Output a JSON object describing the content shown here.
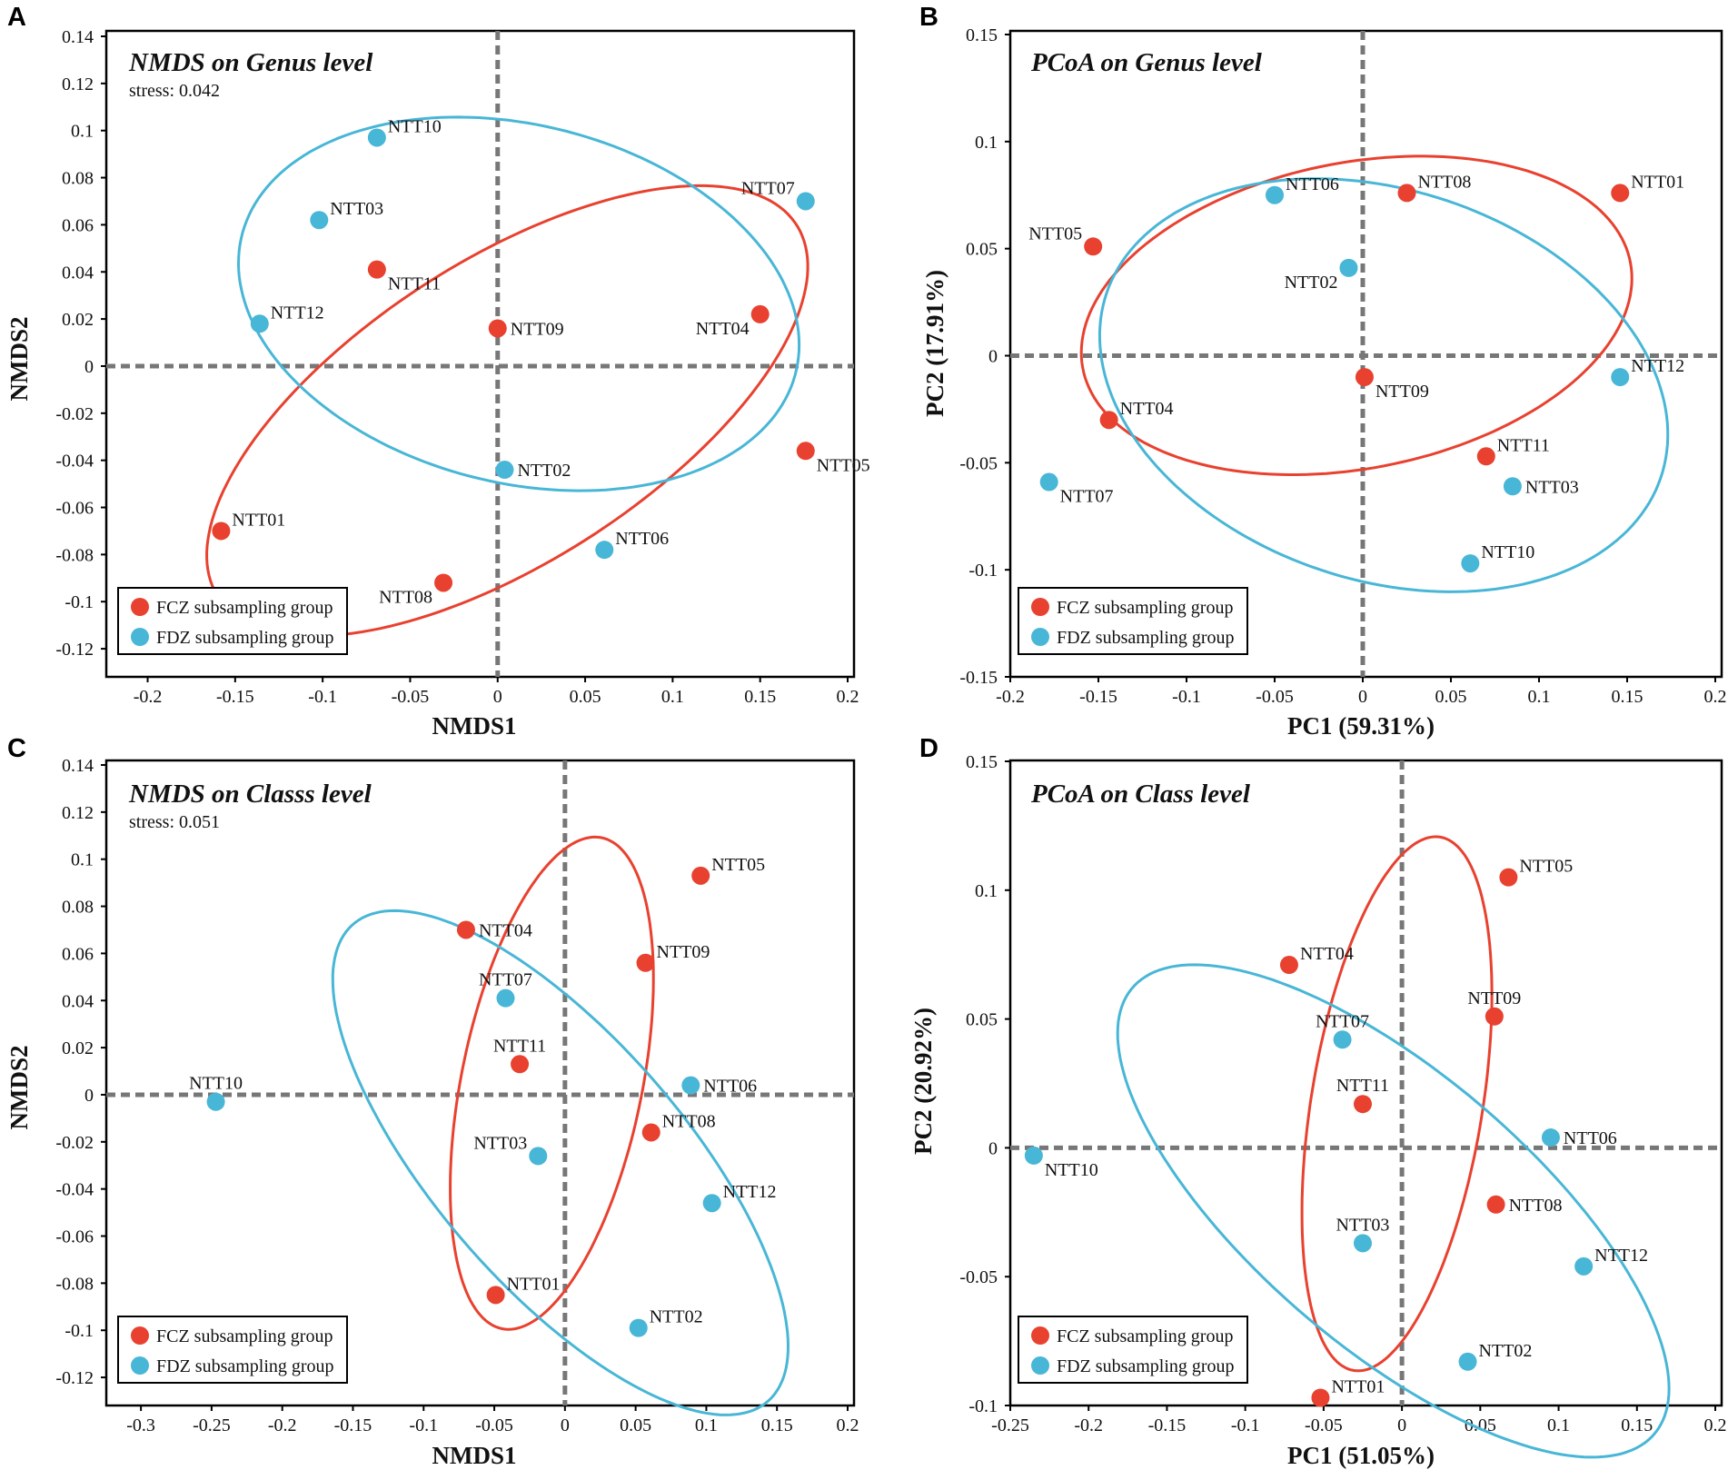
{
  "colors": {
    "FCZ": "#e8412f",
    "FDZ": "#48b6d6",
    "zero_line": "#777777"
  },
  "chart_data": [
    {
      "panel": "A",
      "type": "scatter",
      "title": "NMDS on Genus level",
      "subtitle": "stress: 0.042",
      "xlabel": "NMDS1",
      "ylabel": "NMDS2",
      "xlim": [
        -0.22,
        0.2
      ],
      "ylim": [
        -0.13,
        0.14
      ],
      "xticks": [
        -0.2,
        -0.15,
        -0.1,
        -0.05,
        0,
        0.05,
        0.1,
        0.15,
        0.2
      ],
      "xtick_labels": [
        "-0.2",
        "-0.15",
        "-0.1",
        "-0.05",
        "0",
        "0.05",
        "0.1",
        "0.15",
        "0.2"
      ],
      "yticks": [
        -0.12,
        -0.1,
        -0.08,
        -0.06,
        -0.04,
        -0.02,
        0,
        0.02,
        0.04,
        0.06,
        0.08,
        0.1,
        0.12,
        0.14
      ],
      "ytick_labels": [
        "-0.12",
        "-0.1",
        "-0.08",
        "-0.06",
        "-0.04",
        "-0.02",
        "0",
        "0.02",
        "0.04",
        "0.06",
        "0.08",
        "0.1",
        "0.12",
        "0.14"
      ],
      "legend": [
        {
          "group": "FCZ",
          "label": "FCZ subsampling group"
        },
        {
          "group": "FDZ",
          "label": "FDZ subsampling group"
        }
      ],
      "points": [
        {
          "id": "NTT01",
          "group": "FCZ",
          "x": -0.158,
          "y": -0.07,
          "label_pos": "ur"
        },
        {
          "id": "NTT04",
          "group": "FCZ",
          "x": 0.15,
          "y": 0.022,
          "label_pos": "ll"
        },
        {
          "id": "NTT05",
          "group": "FCZ",
          "x": 0.176,
          "y": -0.036,
          "label_pos": "lr"
        },
        {
          "id": "NTT08",
          "group": "FCZ",
          "x": -0.031,
          "y": -0.092,
          "label_pos": "ll"
        },
        {
          "id": "NTT09",
          "group": "FCZ",
          "x": 0.0,
          "y": 0.016,
          "label_pos": "r"
        },
        {
          "id": "NTT11",
          "group": "FCZ",
          "x": -0.069,
          "y": 0.041,
          "label_pos": "lr"
        },
        {
          "id": "NTT02",
          "group": "FDZ",
          "x": 0.004,
          "y": -0.044,
          "label_pos": "r"
        },
        {
          "id": "NTT03",
          "group": "FDZ",
          "x": -0.102,
          "y": 0.062,
          "label_pos": "ur"
        },
        {
          "id": "NTT06",
          "group": "FDZ",
          "x": 0.061,
          "y": -0.078,
          "label_pos": "ur"
        },
        {
          "id": "NTT07",
          "group": "FDZ",
          "x": 0.176,
          "y": 0.07,
          "label_pos": "ul"
        },
        {
          "id": "NTT10",
          "group": "FDZ",
          "x": -0.069,
          "y": 0.097,
          "label_pos": "ur"
        },
        {
          "id": "NTT12",
          "group": "FDZ",
          "x": -0.136,
          "y": 0.018,
          "label_pos": "ur"
        }
      ],
      "ellipses": [
        {
          "group": "FCZ",
          "cx": 0.0055,
          "cy": -0.019,
          "rx": 0.1843,
          "ry": 0.0683,
          "angle": 23
        },
        {
          "group": "FDZ",
          "cx": 0.0121,
          "cy": 0.0264,
          "rx": 0.1614,
          "ry": 0.0768,
          "angle": -8
        }
      ]
    },
    {
      "panel": "B",
      "type": "scatter",
      "title": "PCoA on Genus level",
      "subtitle": "",
      "xlabel": "PC1 (59.31%)",
      "ylabel": "PC2 (17.91%)",
      "xlim": [
        -0.2,
        0.2
      ],
      "ylim": [
        -0.15,
        0.15
      ],
      "xticks": [
        -0.2,
        -0.15,
        -0.1,
        -0.05,
        0,
        0.05,
        0.1,
        0.15,
        0.2
      ],
      "xtick_labels": [
        "-0.2",
        "-0.15",
        "-0.1",
        "-0.05",
        "0",
        "0.05",
        "0.1",
        "0.15",
        "0.2"
      ],
      "yticks": [
        -0.15,
        -0.1,
        -0.05,
        0,
        0.05,
        0.1,
        0.15
      ],
      "ytick_labels": [
        "-0.15",
        "-0.1",
        "-0.05",
        "0",
        "0.05",
        "0.1",
        "0.15"
      ],
      "legend": [
        {
          "group": "FCZ",
          "label": "FCZ subsampling group"
        },
        {
          "group": "FDZ",
          "label": "FDZ subsampling group"
        }
      ],
      "points": [
        {
          "id": "NTT01",
          "group": "FCZ",
          "x": 0.146,
          "y": 0.076,
          "label_pos": "ur"
        },
        {
          "id": "NTT04",
          "group": "FCZ",
          "x": -0.144,
          "y": -0.03,
          "label_pos": "ur"
        },
        {
          "id": "NTT05",
          "group": "FCZ",
          "x": -0.153,
          "y": 0.051,
          "label_pos": "ul"
        },
        {
          "id": "NTT08",
          "group": "FCZ",
          "x": 0.025,
          "y": 0.076,
          "label_pos": "ur"
        },
        {
          "id": "NTT09",
          "group": "FCZ",
          "x": 0.001,
          "y": -0.01,
          "label_pos": "lr"
        },
        {
          "id": "NTT11",
          "group": "FCZ",
          "x": 0.07,
          "y": -0.047,
          "label_pos": "ur"
        },
        {
          "id": "NTT02",
          "group": "FDZ",
          "x": -0.008,
          "y": 0.041,
          "label_pos": "ll"
        },
        {
          "id": "NTT03",
          "group": "FDZ",
          "x": 0.085,
          "y": -0.061,
          "label_pos": "r"
        },
        {
          "id": "NTT06",
          "group": "FDZ",
          "x": -0.05,
          "y": 0.075,
          "label_pos": "ur"
        },
        {
          "id": "NTT07",
          "group": "FDZ",
          "x": -0.178,
          "y": -0.059,
          "label_pos": "lr"
        },
        {
          "id": "NTT10",
          "group": "FDZ",
          "x": 0.061,
          "y": -0.097,
          "label_pos": "ur"
        },
        {
          "id": "NTT12",
          "group": "FDZ",
          "x": 0.146,
          "y": -0.01,
          "label_pos": "ur"
        }
      ],
      "ellipses": [
        {
          "group": "FCZ",
          "cx": -0.0035,
          "cy": 0.0188,
          "rx": 0.1574,
          "ry": 0.0718,
          "angle": 8
        },
        {
          "group": "FDZ",
          "cx": 0.0119,
          "cy": -0.0138,
          "rx": 0.1636,
          "ry": 0.0923,
          "angle": -12
        }
      ]
    },
    {
      "panel": "C",
      "type": "scatter",
      "title": "NMDS on Classs level",
      "subtitle": "stress: 0.051",
      "xlabel": "NMDS1",
      "ylabel": "NMDS2",
      "xlim": [
        -0.32,
        0.2
      ],
      "ylim": [
        -0.13,
        0.14
      ],
      "xticks": [
        -0.3,
        -0.25,
        -0.2,
        -0.15,
        -0.1,
        -0.05,
        0,
        0.05,
        0.1,
        0.15,
        0.2
      ],
      "xtick_labels": [
        "-0.3",
        "-0.25",
        "-0.2",
        "-0.15",
        "-0.1",
        "-0.05",
        "0",
        "0.05",
        "0.1",
        "0.15",
        "0.2"
      ],
      "yticks": [
        -0.12,
        -0.1,
        -0.08,
        -0.06,
        -0.04,
        -0.02,
        0,
        0.02,
        0.04,
        0.06,
        0.08,
        0.1,
        0.12,
        0.14
      ],
      "ytick_labels": [
        "-0.12",
        "-0.1",
        "-0.08",
        "-0.06",
        "-0.04",
        "-0.02",
        "0",
        "0.02",
        "0.04",
        "0.06",
        "0.08",
        "0.1",
        "0.12",
        "0.14"
      ],
      "legend": [
        {
          "group": "FCZ",
          "label": "FCZ subsampling group"
        },
        {
          "group": "FDZ",
          "label": "FDZ subsampling group"
        }
      ],
      "points": [
        {
          "id": "NTT01",
          "group": "FCZ",
          "x": -0.049,
          "y": -0.085,
          "label_pos": "ur"
        },
        {
          "id": "NTT04",
          "group": "FCZ",
          "x": -0.07,
          "y": 0.07,
          "label_pos": "r"
        },
        {
          "id": "NTT05",
          "group": "FCZ",
          "x": 0.096,
          "y": 0.093,
          "label_pos": "ur"
        },
        {
          "id": "NTT08",
          "group": "FCZ",
          "x": 0.061,
          "y": -0.016,
          "label_pos": "ur"
        },
        {
          "id": "NTT09",
          "group": "FCZ",
          "x": 0.057,
          "y": 0.056,
          "label_pos": "ur"
        },
        {
          "id": "NTT11",
          "group": "FCZ",
          "x": -0.032,
          "y": 0.013,
          "label_pos": "u"
        },
        {
          "id": "NTT02",
          "group": "FDZ",
          "x": 0.052,
          "y": -0.099,
          "label_pos": "ur"
        },
        {
          "id": "NTT03",
          "group": "FDZ",
          "x": -0.019,
          "y": -0.026,
          "label_pos": "ul"
        },
        {
          "id": "NTT06",
          "group": "FDZ",
          "x": 0.089,
          "y": 0.004,
          "label_pos": "r"
        },
        {
          "id": "NTT07",
          "group": "FDZ",
          "x": -0.042,
          "y": 0.041,
          "label_pos": "u"
        },
        {
          "id": "NTT10",
          "group": "FDZ",
          "x": -0.247,
          "y": -0.003,
          "label_pos": "u"
        },
        {
          "id": "NTT12",
          "group": "FDZ",
          "x": 0.104,
          "y": -0.046,
          "label_pos": "ur"
        }
      ],
      "ellipses": [
        {
          "group": "FCZ",
          "cx": -0.0093,
          "cy": 0.0049,
          "rx": 0.1111,
          "ry": 0.0612,
          "angle": 66
        },
        {
          "group": "FDZ",
          "cx": -0.0032,
          "cy": -0.0289,
          "rx": 0.1822,
          "ry": 0.0649,
          "angle": -30
        }
      ]
    },
    {
      "panel": "D",
      "type": "scatter",
      "title": "PCoA on Class level",
      "subtitle": "",
      "xlabel": "PC1 (51.05%)",
      "ylabel": "PC2 (20.92%)",
      "xlim": [
        -0.25,
        0.2
      ],
      "ylim": [
        -0.1,
        0.15
      ],
      "xticks": [
        -0.25,
        -0.2,
        -0.15,
        -0.1,
        -0.05,
        0,
        0.05,
        0.1,
        0.15,
        0.2
      ],
      "xtick_labels": [
        "-0.25",
        "-0.2",
        "-0.15",
        "-0.1",
        "-0.05",
        "0",
        "0.05",
        "0.1",
        "0.15",
        "0.2"
      ],
      "yticks": [
        -0.1,
        -0.05,
        0,
        0.05,
        0.1,
        0.15
      ],
      "ytick_labels": [
        "-0.1",
        "-0.05",
        "0",
        "0.05",
        "0.1",
        "0.15"
      ],
      "legend": [
        {
          "group": "FCZ",
          "label": "FCZ subsampling group"
        },
        {
          "group": "FDZ",
          "label": "FDZ subsampling group"
        }
      ],
      "points": [
        {
          "id": "NTT01",
          "group": "FCZ",
          "x": -0.052,
          "y": -0.097,
          "label_pos": "ur"
        },
        {
          "id": "NTT04",
          "group": "FCZ",
          "x": -0.072,
          "y": 0.071,
          "label_pos": "ur"
        },
        {
          "id": "NTT05",
          "group": "FCZ",
          "x": 0.068,
          "y": 0.105,
          "label_pos": "ur"
        },
        {
          "id": "NTT08",
          "group": "FCZ",
          "x": 0.06,
          "y": -0.022,
          "label_pos": "r"
        },
        {
          "id": "NTT09",
          "group": "FCZ",
          "x": 0.059,
          "y": 0.051,
          "label_pos": "u"
        },
        {
          "id": "NTT11",
          "group": "FCZ",
          "x": -0.025,
          "y": 0.017,
          "label_pos": "u"
        },
        {
          "id": "NTT02",
          "group": "FDZ",
          "x": 0.042,
          "y": -0.083,
          "label_pos": "ur"
        },
        {
          "id": "NTT03",
          "group": "FDZ",
          "x": -0.025,
          "y": -0.037,
          "label_pos": "u"
        },
        {
          "id": "NTT06",
          "group": "FDZ",
          "x": 0.095,
          "y": 0.004,
          "label_pos": "r"
        },
        {
          "id": "NTT07",
          "group": "FDZ",
          "x": -0.038,
          "y": 0.042,
          "label_pos": "u"
        },
        {
          "id": "NTT10",
          "group": "FDZ",
          "x": -0.235,
          "y": -0.003,
          "label_pos": "lr"
        },
        {
          "id": "NTT12",
          "group": "FDZ",
          "x": 0.116,
          "y": -0.046,
          "label_pos": "ur"
        }
      ],
      "ellipses": [
        {
          "group": "FCZ",
          "cx": -0.0032,
          "cy": 0.0171,
          "rx": 0.1076,
          "ry": 0.0533,
          "angle": 72
        },
        {
          "group": "FDZ",
          "cx": -0.0055,
          "cy": -0.0245,
          "rx": 0.1907,
          "ry": 0.0611,
          "angle": -24
        }
      ]
    }
  ]
}
